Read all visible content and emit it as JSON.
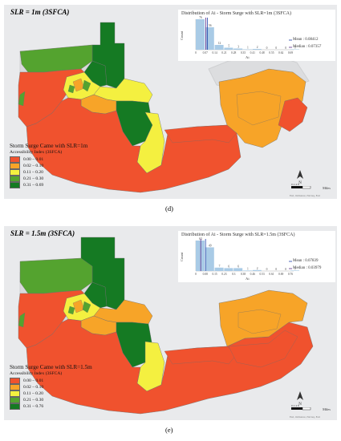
{
  "panels": [
    {
      "title": "SLR = 1m (3SFCA)",
      "letter": "(d)",
      "legend_title": "Storm Surge Came with SLR=1m",
      "legend_subtitle": "Accessibility Index (3SFCA)",
      "legend_classes": [
        {
          "label": "0.00 – 0.01",
          "color": "#f0522e"
        },
        {
          "label": "0.02 – 0.10",
          "color": "#f7a428"
        },
        {
          "label": "0.11 – 0.20",
          "color": "#f4f040"
        },
        {
          "label": "0.21 – 0.30",
          "color": "#54a32f"
        },
        {
          "label": "0.31 – 0.69",
          "color": "#157a23"
        }
      ],
      "histogram": {
        "title": "Distribution of Ai - Storm Surge with SLR=1m (3SFCA)",
        "ylabel": "Count",
        "xlabel": "Ai",
        "x_ticks": [
          "0",
          "0.07",
          "0.14",
          "0.21",
          "0.28",
          "0.35",
          "0.41",
          "0.48",
          "0.55",
          "0.62",
          "0.69"
        ],
        "bar_counts": [
          76,
          56,
          12,
          5,
          3,
          1,
          2,
          0,
          0,
          0,
          1
        ],
        "count_labels": [
          "76",
          "56",
          "12",
          "5",
          "3",
          "1",
          "2",
          "0",
          "0",
          "0",
          "1"
        ],
        "mean_label": "Mean : 0.08412",
        "median_label": "Median : 0.07357",
        "mean": 0.08412,
        "median": 0.07357,
        "x_max": 0.69
      },
      "scale_label": "0 2 4 8",
      "scale_unit": "Miles",
      "north_label": "N",
      "credit": "Esri, Ordnance, Navteq, Esri"
    },
    {
      "title": "SLR = 1.5m (3SFCA)",
      "letter": "(e)",
      "legend_title": "Storm Surge Came with SLR=1.5m",
      "legend_subtitle": "Accessibility Index (3SFCA)",
      "legend_classes": [
        {
          "label": "0.00 – 0.01",
          "color": "#f0522e"
        },
        {
          "label": "0.02 – 0.10",
          "color": "#f7a428"
        },
        {
          "label": "0.11 – 0.20",
          "color": "#f4f040"
        },
        {
          "label": "0.21 – 0.30",
          "color": "#54a32f"
        },
        {
          "label": "0.31 – 0.76",
          "color": "#157a23"
        }
      ],
      "histogram": {
        "title": "Distribution of Ai - Storm Surge with SLR=1.5m (3SFCA)",
        "ylabel": "Count",
        "xlabel": "Ai",
        "x_ticks": [
          "0",
          "0.08",
          "0.15",
          "0.23",
          "0.3",
          "0.38",
          "0.46",
          "0.53",
          "0.61",
          "0.69",
          "0.76"
        ],
        "bar_counts": [
          63,
          49,
          7,
          6,
          6,
          1,
          2,
          0,
          0,
          0,
          1
        ],
        "count_labels": [
          "63",
          "49",
          "7",
          "6",
          "6",
          "1",
          "2",
          "0",
          "0",
          "0",
          "1"
        ],
        "mean_label": "Mean : 0.07839",
        "median_label": "Median : 0.03979",
        "mean": 0.07839,
        "median": 0.03979,
        "x_max": 0.76
      },
      "scale_label": "0 2 4 8",
      "scale_unit": "Miles",
      "north_label": "N",
      "credit": "Esri, Ordnance, Navteq, Esri"
    }
  ]
}
